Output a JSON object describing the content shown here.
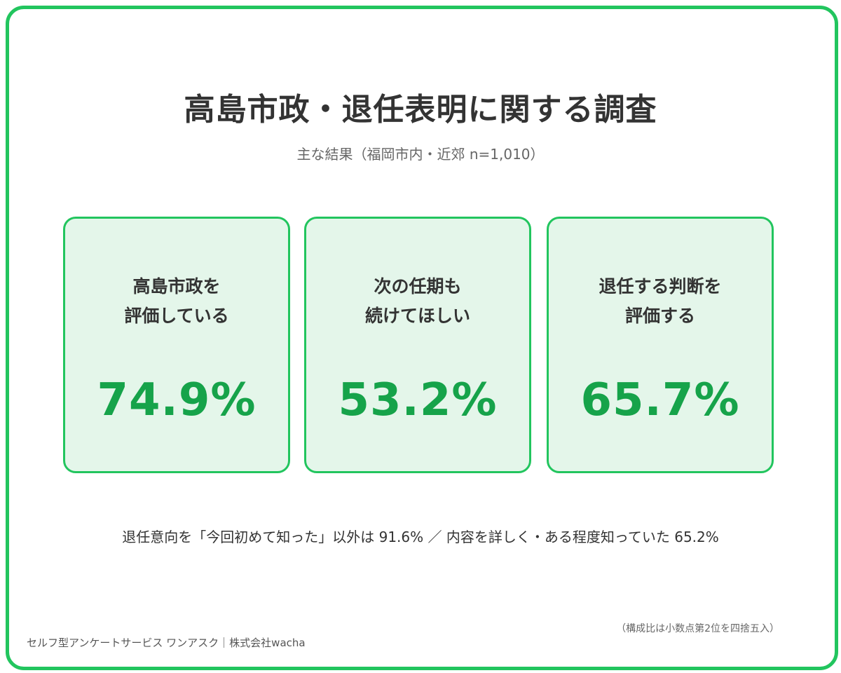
{
  "title": "高島市政・退任表明に関する調査",
  "subtitle": "主な結果（福岡市内・近郊 n=1,010）",
  "cards": [
    {
      "line1": "高島市政を",
      "line2": "評価している",
      "value": "74.9%"
    },
    {
      "line1": "次の任期も",
      "line2": "続けてほしい",
      "value": "53.2%"
    },
    {
      "line1": "退任する判断を",
      "line2": "評価する",
      "value": "65.7%"
    }
  ],
  "footnote": "退任意向を「今回初めて知った」以外は 91.6% ／ 内容を詳しく・ある程度知っていた 65.2%",
  "rounding_note": "（構成比は小数点第2位を四捨五入）",
  "credit": "セルフ型アンケートサービス ワンアスク｜株式会社wacha",
  "colors": {
    "accent": "#22c55e",
    "value": "#16a34a",
    "card_bg": "#e4f6ea"
  }
}
